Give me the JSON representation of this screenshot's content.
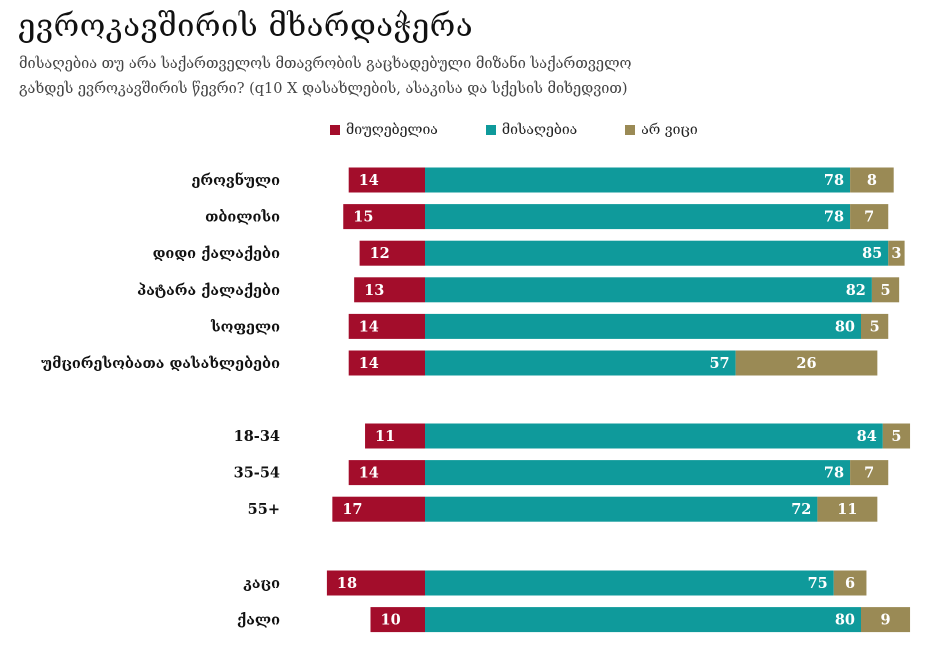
{
  "header": {
    "title": "ევროკავშირის მხარდაჭერა",
    "subtitle_line1": "მისაღებია თუ არა საქართველოს მთავრობის გაცხადებული მიზანი საქართველო",
    "subtitle_line2": "გახდეს ევროკავშირის წევრი? (q10 X დასახლების, ასაკისა და სქესის მიხედვით)"
  },
  "colors": {
    "unacceptable": "#a30d2b",
    "acceptable": "#0f9a9b",
    "dont_know": "#9a8a55"
  },
  "chart_data": {
    "type": "bar",
    "orientation": "horizontal",
    "stacked": true,
    "series_order": [
      "მიუღებელია",
      "მისაღებია",
      "არ ვიცი"
    ],
    "legend": [
      "მიუღებელია",
      "მისაღებია",
      "არ ვიცი"
    ],
    "legend_position": "top",
    "groups": [
      {
        "rows": [
          {
            "label": "ეროვნული",
            "unacceptable": 14,
            "acceptable": 78,
            "dont_know": 8
          },
          {
            "label": "თბილისი",
            "unacceptable": 15,
            "acceptable": 78,
            "dont_know": 7
          },
          {
            "label": "დიდი ქალაქები",
            "unacceptable": 12,
            "acceptable": 85,
            "dont_know": 3
          },
          {
            "label": "პატარა ქალაქები",
            "unacceptable": 13,
            "acceptable": 82,
            "dont_know": 5
          },
          {
            "label": "სოფელი",
            "unacceptable": 14,
            "acceptable": 80,
            "dont_know": 5
          },
          {
            "label": "უმცირესობათა დასახლებები",
            "unacceptable": 14,
            "acceptable": 57,
            "dont_know": 26
          }
        ]
      },
      {
        "rows": [
          {
            "label": "18-34",
            "unacceptable": 11,
            "acceptable": 84,
            "dont_know": 5
          },
          {
            "label": "35-54",
            "unacceptable": 14,
            "acceptable": 78,
            "dont_know": 7
          },
          {
            "label": "55+",
            "unacceptable": 17,
            "acceptable": 72,
            "dont_know": 11
          }
        ]
      },
      {
        "rows": [
          {
            "label": "კაცი",
            "unacceptable": 18,
            "acceptable": 75,
            "dont_know": 6
          },
          {
            "label": "ქალი",
            "unacceptable": 10,
            "acceptable": 80,
            "dont_know": 9
          }
        ]
      }
    ]
  }
}
